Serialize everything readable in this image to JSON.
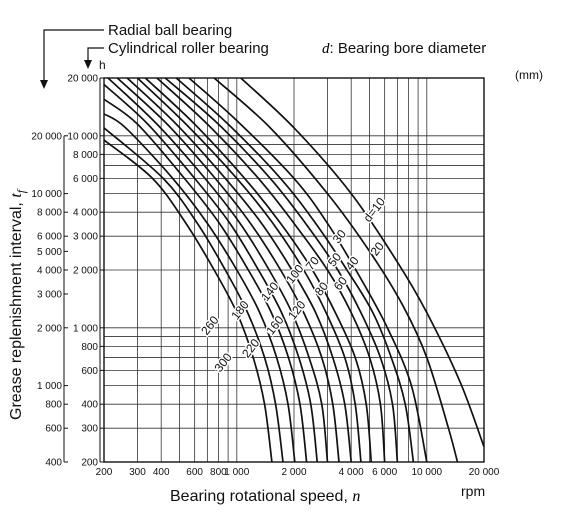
{
  "chart_data": {
    "type": "line",
    "title_lines": [
      "Radial ball bearing",
      "Cylindrical roller bearing"
    ],
    "legend_note_symbol": "d",
    "legend_note_text": ": Bearing bore diameter",
    "legend_unit": "(mm)",
    "hour_unit": "h",
    "xlabel_text": "Bearing rotational speed, ",
    "xlabel_symbol": "n",
    "xunit": "rpm",
    "ylabel_text": "Grease replenishment interval, ",
    "ylabel_symbol": "t",
    "ylabel_subscript": "f",
    "x_scale": "log",
    "y_scale": "log",
    "xlim": [
      200,
      20000
    ],
    "ylim_cylindrical": [
      200,
      20000
    ],
    "ylim_radial": [
      400,
      40000
    ],
    "grid": true,
    "x_ticks": [
      200,
      300,
      400,
      600,
      800,
      1000,
      2000,
      4000,
      6000,
      10000,
      20000
    ],
    "x_tick_labels": [
      "200",
      "300",
      "400",
      "600",
      "800",
      "1 000",
      "2 000",
      "4 000",
      "6 000",
      "10 000",
      "20 000"
    ],
    "y_ticks_cylindrical": [
      200,
      300,
      400,
      600,
      800,
      1000,
      2000,
      3000,
      4000,
      6000,
      8000,
      10000,
      20000
    ],
    "y_tick_labels_cylindrical": [
      "200",
      "300",
      "400",
      "600",
      "800",
      "1 000",
      "2 000",
      "3 000",
      "4 000",
      "6 000",
      "8 000",
      "10 000",
      "20 000"
    ],
    "y_ticks_radial": [
      400,
      600,
      800,
      1000,
      2000,
      3000,
      4000,
      5000,
      6000,
      8000,
      10000,
      20000
    ],
    "y_tick_labels_radial": [
      "400",
      "600",
      "800",
      "1 000",
      "2 000",
      "3 000",
      "4 000",
      "5 000",
      "6 000",
      "8 000",
      "10 000",
      "20 000"
    ],
    "series": [
      {
        "name": "d=10",
        "label": "d=10",
        "label_at": [
          5500,
          4000
        ],
        "points": [
          [
            1050,
            20000
          ],
          [
            2000,
            11000
          ],
          [
            4000,
            5000
          ],
          [
            7000,
            2200
          ],
          [
            10000,
            1200
          ],
          [
            15000,
            520
          ],
          [
            20000,
            240
          ]
        ]
      },
      {
        "name": "20",
        "label": "20",
        "label_at": [
          5700,
          2500
        ],
        "points": [
          [
            760,
            20000
          ],
          [
            1500,
            11000
          ],
          [
            3000,
            5000
          ],
          [
            5000,
            2500
          ],
          [
            7500,
            1300
          ],
          [
            10000,
            700
          ],
          [
            13000,
            300
          ],
          [
            14500,
            200
          ]
        ]
      },
      {
        "name": "30",
        "label": "30",
        "label_at": [
          3600,
          2900
        ],
        "points": [
          [
            560,
            20000
          ],
          [
            1000,
            12000
          ],
          [
            2000,
            6000
          ],
          [
            3000,
            3500
          ],
          [
            4500,
            1800
          ],
          [
            6200,
            1000
          ],
          [
            8300,
            500
          ],
          [
            10000,
            200
          ]
        ]
      },
      {
        "name": "40",
        "label": "40",
        "label_at": [
          4200,
          2100
        ],
        "points": [
          [
            480,
            20000
          ],
          [
            900,
            11500
          ],
          [
            1700,
            6000
          ],
          [
            2600,
            3500
          ],
          [
            3800,
            2000
          ],
          [
            5200,
            1200
          ],
          [
            6500,
            700
          ],
          [
            7700,
            400
          ],
          [
            8500,
            200
          ]
        ]
      },
      {
        "name": "50",
        "label": "50",
        "label_at": [
          3400,
          2200
        ],
        "points": [
          [
            420,
            20000
          ],
          [
            800,
            11500
          ],
          [
            1500,
            6000
          ],
          [
            2300,
            3500
          ],
          [
            3400,
            2000
          ],
          [
            4500,
            1200
          ],
          [
            5700,
            700
          ],
          [
            6600,
            400
          ],
          [
            7000,
            200
          ]
        ]
      },
      {
        "name": "60",
        "label": "60",
        "label_at": [
          3650,
          1650
        ],
        "points": [
          [
            380,
            20000
          ],
          [
            700,
            11500
          ],
          [
            1300,
            6000
          ],
          [
            2000,
            3500
          ],
          [
            3000,
            2000
          ],
          [
            4000,
            1200
          ],
          [
            5000,
            700
          ],
          [
            5700,
            400
          ],
          [
            6000,
            200
          ]
        ]
      },
      {
        "name": "70",
        "label": "70",
        "label_at": [
          2600,
          2100
        ],
        "points": [
          [
            330,
            20000
          ],
          [
            600,
            11500
          ],
          [
            1100,
            6000
          ],
          [
            1700,
            3500
          ],
          [
            2500,
            2000
          ],
          [
            3300,
            1200
          ],
          [
            4200,
            700
          ],
          [
            4800,
            400
          ],
          [
            5100,
            200
          ]
        ]
      },
      {
        "name": "80",
        "label": "80",
        "label_at": [
          2900,
          1550
        ],
        "points": [
          [
            300,
            20000
          ],
          [
            540,
            11500
          ],
          [
            1000,
            6000
          ],
          [
            1550,
            3500
          ],
          [
            2250,
            2000
          ],
          [
            2950,
            1200
          ],
          [
            3700,
            700
          ],
          [
            4200,
            400
          ],
          [
            4500,
            200
          ]
        ]
      },
      {
        "name": "100",
        "label": "100",
        "label_at": [
          2100,
          1850
        ],
        "points": [
          [
            265,
            20000
          ],
          [
            480,
            11500
          ],
          [
            870,
            6000
          ],
          [
            1350,
            3500
          ],
          [
            1950,
            2000
          ],
          [
            2600,
            1200
          ],
          [
            3200,
            700
          ],
          [
            3700,
            400
          ],
          [
            4000,
            200
          ]
        ]
      },
      {
        "name": "120",
        "label": "120",
        "label_at": [
          2150,
          1200
        ],
        "points": [
          [
            235,
            20000
          ],
          [
            430,
            11500
          ],
          [
            770,
            6000
          ],
          [
            1180,
            3500
          ],
          [
            1700,
            2000
          ],
          [
            2250,
            1200
          ],
          [
            2800,
            700
          ],
          [
            3200,
            400
          ],
          [
            3450,
            200
          ]
        ]
      },
      {
        "name": "140",
        "label": "140",
        "label_at": [
          1550,
          1500
        ],
        "points": [
          [
            210,
            20000
          ],
          [
            380,
            11500
          ],
          [
            680,
            6000
          ],
          [
            1040,
            3500
          ],
          [
            1480,
            2000
          ],
          [
            1950,
            1200
          ],
          [
            2400,
            700
          ],
          [
            2800,
            400
          ],
          [
            3000,
            200
          ]
        ]
      },
      {
        "name": "160",
        "label": "160",
        "label_at": [
          1650,
          1000
        ],
        "points": [
          [
            200,
            18500
          ],
          [
            340,
            11500
          ],
          [
            600,
            6000
          ],
          [
            920,
            3500
          ],
          [
            1300,
            2000
          ],
          [
            1720,
            1200
          ],
          [
            2120,
            700
          ],
          [
            2450,
            400
          ],
          [
            2650,
            200
          ]
        ]
      },
      {
        "name": "180",
        "label": "180",
        "label_at": [
          1080,
          1200
        ],
        "points": [
          [
            200,
            15500
          ],
          [
            300,
            11500
          ],
          [
            530,
            6000
          ],
          [
            810,
            3500
          ],
          [
            1150,
            2000
          ],
          [
            1520,
            1200
          ],
          [
            1870,
            700
          ],
          [
            2150,
            400
          ],
          [
            2330,
            200
          ]
        ]
      },
      {
        "name": "220",
        "label": "220",
        "label_at": [
          1230,
          760
        ],
        "points": [
          [
            200,
            13000
          ],
          [
            260,
            11000
          ],
          [
            460,
            6000
          ],
          [
            700,
            3500
          ],
          [
            1000,
            2000
          ],
          [
            1320,
            1200
          ],
          [
            1620,
            700
          ],
          [
            1860,
            400
          ],
          [
            2020,
            200
          ]
        ]
      },
      {
        "name": "260",
        "label": "260",
        "label_at": [
          750,
          1000
        ],
        "points": [
          [
            200,
            11000
          ],
          [
            410,
            6000
          ],
          [
            620,
            3500
          ],
          [
            870,
            2000
          ],
          [
            1140,
            1200
          ],
          [
            1400,
            700
          ],
          [
            1600,
            400
          ],
          [
            1750,
            200
          ]
        ]
      },
      {
        "name": "300",
        "label": "300",
        "label_at": [
          880,
          640
        ],
        "points": [
          [
            200,
            9500
          ],
          [
            360,
            6000
          ],
          [
            540,
            3500
          ],
          [
            760,
            2000
          ],
          [
            1000,
            1200
          ],
          [
            1220,
            700
          ],
          [
            1400,
            400
          ],
          [
            1530,
            200
          ]
        ]
      }
    ]
  }
}
